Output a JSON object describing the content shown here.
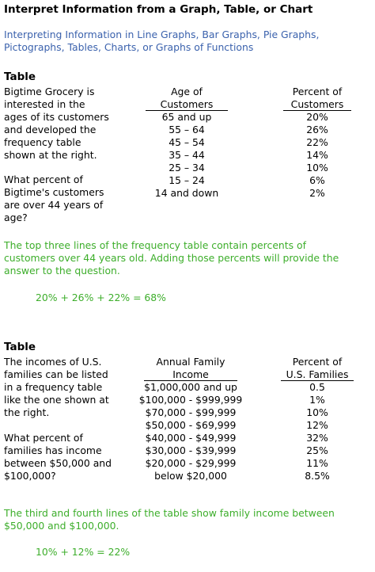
{
  "title": "Interpret Information from a Graph, Table, or Chart",
  "subtitle_lines": [
    "Interpreting Information in Line Graphs, Bar Graphs, Pie Graphs,",
    "Pictographs, Tables, Charts, or Graphs of Functions"
  ],
  "sections": [
    {
      "heading": "Table",
      "intro_lines": [
        "Bigtime Grocery is",
        "interested in the",
        "ages of its customers",
        "and developed the",
        "frequency table",
        "shown at the right."
      ],
      "question_lines": [
        "What percent of",
        "Bigtime's customers",
        "are over 44 years of",
        "age?"
      ],
      "table": {
        "headers": [
          [
            "Age of",
            "Customers"
          ],
          [
            "Percent of",
            "Customers"
          ]
        ],
        "rows": [
          [
            "65 and up",
            "20%"
          ],
          [
            "55 – 64",
            "26%"
          ],
          [
            "45 – 54",
            "22%"
          ],
          [
            "35 – 44",
            "14%"
          ],
          [
            "25 – 34",
            "10%"
          ],
          [
            "15 – 24",
            "6%"
          ],
          [
            "14 and down",
            "2%"
          ]
        ]
      },
      "explanation_lines": [
        "The top three lines of the frequency table contain percents of",
        "customers over 44 years old. Adding those percents will provide the",
        "answer to the question."
      ],
      "equation": "20% + 26% + 22% = 68%"
    },
    {
      "heading": "Table",
      "intro_lines": [
        "The incomes of U.S.",
        "families can be listed",
        "in a frequency table",
        "like the one shown at",
        "the right."
      ],
      "question_lines": [
        "What percent of",
        "families has income",
        "between $50,000 and",
        "$100,000?"
      ],
      "table": {
        "headers": [
          [
            "Annual Family",
            "Income"
          ],
          [
            "Percent of",
            "U.S. Families"
          ]
        ],
        "rows": [
          [
            "$1,000,000 and up",
            "0.5"
          ],
          [
            "$100,000 - $999,999",
            "1%"
          ],
          [
            "$70,000 - $99,999",
            "10%"
          ],
          [
            "$50,000 - $69,999",
            "12%"
          ],
          [
            "$40,000 - $49,999",
            "32%"
          ],
          [
            "$30,000 - $39,999",
            "25%"
          ],
          [
            "$20,000 - $29,999",
            "11%"
          ],
          [
            "below $20,000",
            "8.5%"
          ]
        ]
      },
      "explanation_lines": [
        "The third and fourth lines of the table show family income between",
        "$50,000 and $100,000."
      ],
      "equation": "10% + 12% = 22%"
    }
  ]
}
